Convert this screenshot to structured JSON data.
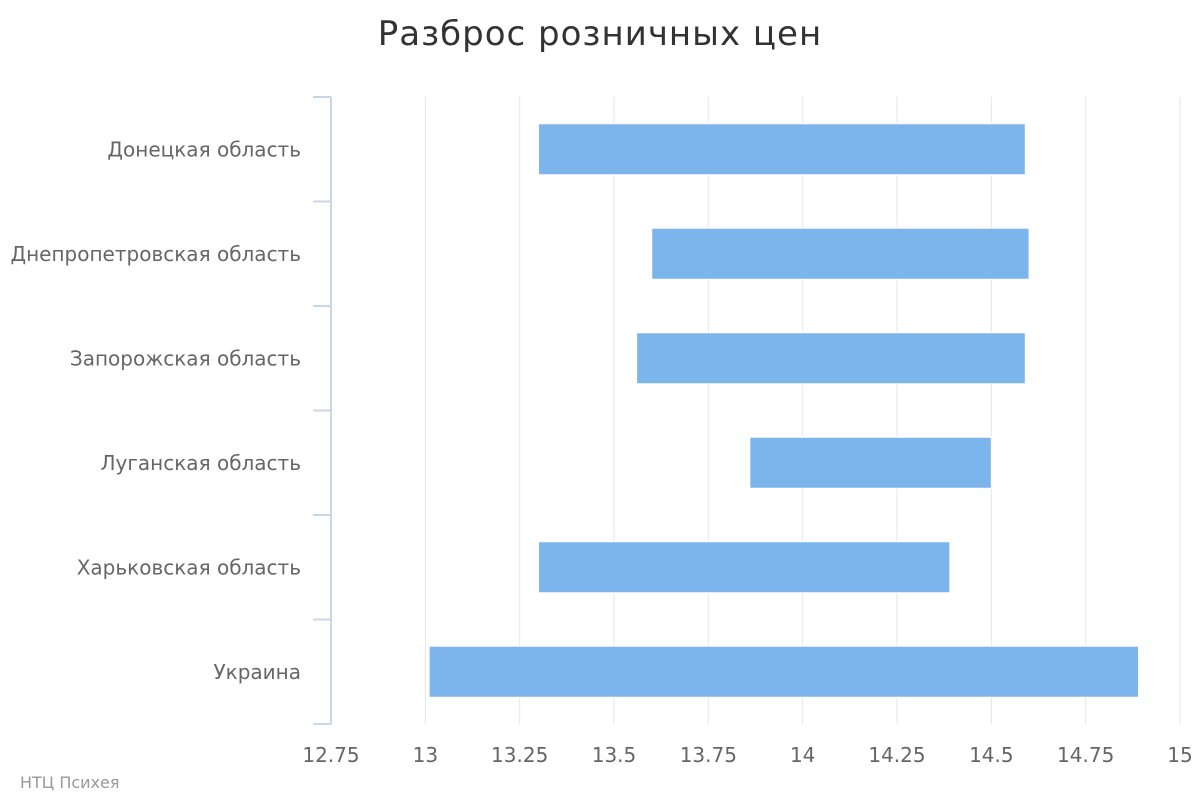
{
  "chart_data": {
    "type": "bar",
    "orientation": "horizontal",
    "title": "Разброс розничных цен",
    "categories": [
      "Донецкая область",
      "Днепропетровская область",
      "Запорожская область",
      "Луганская область",
      "Харьковская область",
      "Украина"
    ],
    "series": [
      {
        "low": [
          13.3,
          13.6,
          13.56,
          13.86,
          13.3,
          13.01
        ],
        "high": [
          14.59,
          14.6,
          14.59,
          14.5,
          14.39,
          14.89
        ]
      }
    ],
    "xlim": [
      12.75,
      15
    ],
    "xticks": [
      "12.75",
      "13",
      "13.25",
      "13.5",
      "13.75",
      "14",
      "14.25",
      "14.5",
      "14.75",
      "15"
    ],
    "grid": true,
    "bar_color": "#7cb5ec"
  },
  "credits": "НТЦ Психея"
}
